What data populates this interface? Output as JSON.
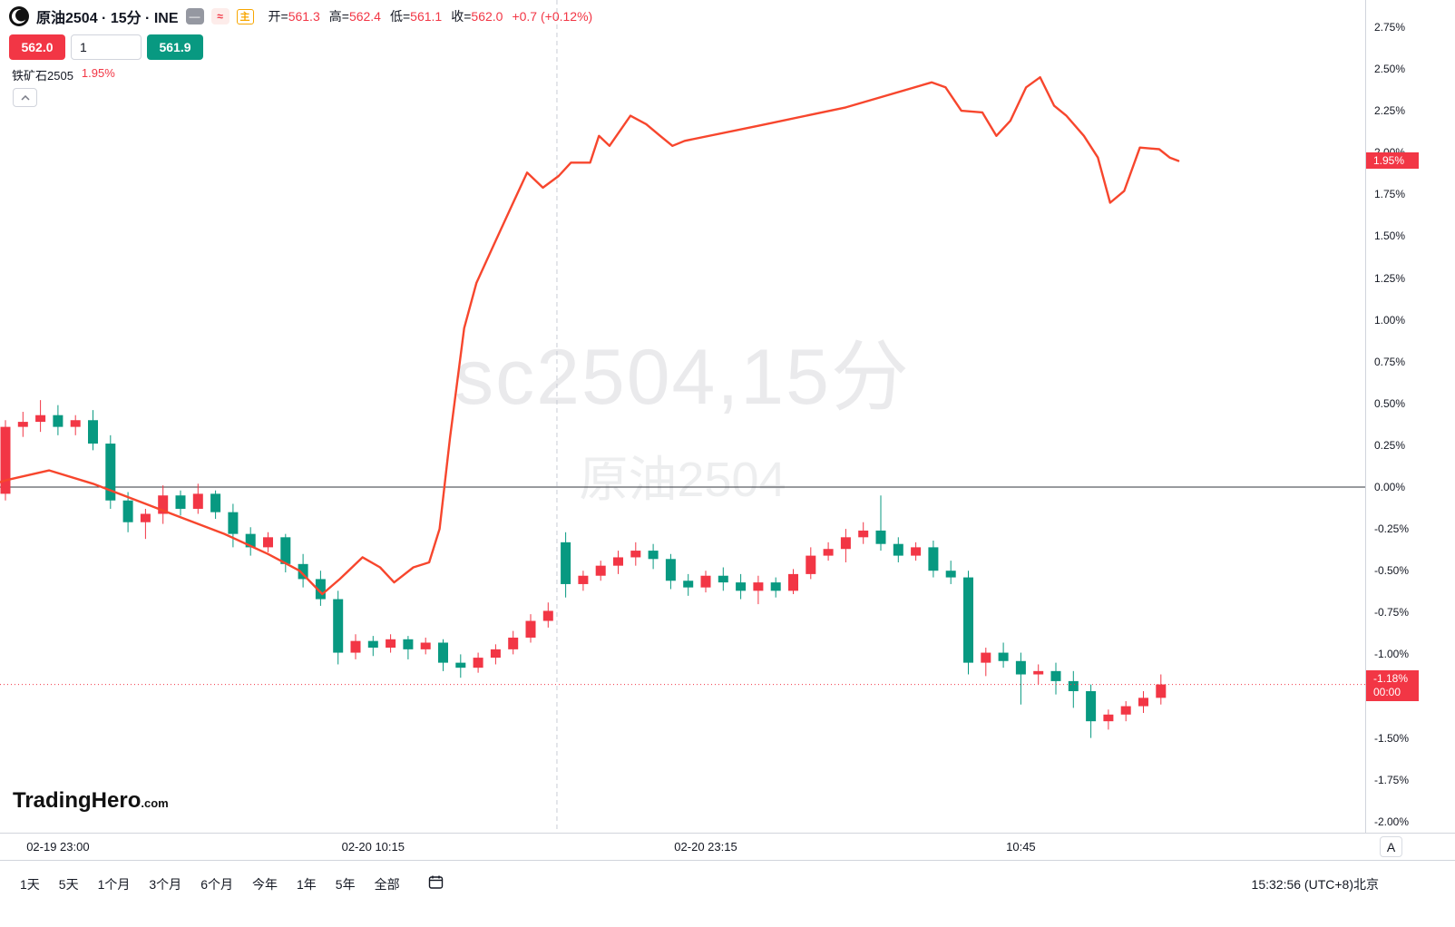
{
  "header": {
    "title": "原油2504 · 15分 · INE",
    "icons": {
      "dash": "—",
      "wave": "≈",
      "main": "主"
    },
    "ohlc": {
      "separator": "=",
      "items": [
        {
          "label": "开",
          "value": "561.3"
        },
        {
          "label": "高",
          "value": "562.4"
        },
        {
          "label": "低",
          "value": "561.1"
        },
        {
          "label": "收",
          "value": "562.0"
        }
      ],
      "change": "+0.7 (+0.12%)"
    }
  },
  "order_panel": {
    "sell": "562.0",
    "quantity": "1",
    "buy": "561.9"
  },
  "brand": {
    "name": "TradingHero",
    "suffix": ".com"
  },
  "price_axis": {
    "badges": {
      "compare": {
        "text": "1.95%",
        "value": 1.95
      },
      "last": {
        "line1": "-1.18%",
        "line2": "00:00",
        "value": -1.18
      }
    },
    "auto_label": "A"
  },
  "toolbar": {
    "ranges": [
      "1天",
      "5天",
      "1个月",
      "3个月",
      "6个月",
      "今年",
      "1年",
      "5年",
      "全部"
    ],
    "clock": "15:32:56 (UTC+8)北京"
  },
  "colors": {
    "up": "#f23645",
    "down": "#089981",
    "compare_line": "#f7462d",
    "last_price_line": "#f23645",
    "zero_line": "#32363e",
    "session_line": "#c9cdd4",
    "axis_border": "#d1d4dc"
  },
  "chart_data": {
    "type": "candlestick",
    "title_watermark": "sc2504,15分",
    "subtitle_watermark": "原油2504",
    "series_unit": "percent_change",
    "y_axis": {
      "min": -2.0,
      "max": 2.75,
      "tick_step": 0.25,
      "tick_values": [
        2.75,
        2.5,
        2.25,
        2.0,
        1.75,
        1.5,
        1.25,
        1.0,
        0.75,
        0.5,
        0.25,
        0.0,
        -0.25,
        -0.5,
        -0.75,
        -1.0,
        -1.25,
        -1.5,
        -1.75,
        -2.0
      ]
    },
    "zero_line": 0.0,
    "last_price": -1.18,
    "session_break_index": 32,
    "x_axis": {
      "ticks": [
        {
          "label": "02-19 23:00",
          "bar": 3
        },
        {
          "label": "02-20 10:15",
          "bar": 21
        },
        {
          "label": "02-20 23:15",
          "bar": 40
        },
        {
          "label": "10:45",
          "bar": 58
        }
      ]
    },
    "candles": [
      [
        -0.04,
        0.4,
        -0.08,
        0.36
      ],
      [
        0.36,
        0.45,
        0.3,
        0.39
      ],
      [
        0.39,
        0.52,
        0.33,
        0.43
      ],
      [
        0.43,
        0.49,
        0.31,
        0.36
      ],
      [
        0.36,
        0.43,
        0.31,
        0.4
      ],
      [
        0.4,
        0.46,
        0.22,
        0.26
      ],
      [
        0.26,
        0.31,
        -0.13,
        -0.08
      ],
      [
        -0.08,
        -0.03,
        -0.27,
        -0.21
      ],
      [
        -0.21,
        -0.13,
        -0.31,
        -0.16
      ],
      [
        -0.16,
        0.01,
        -0.22,
        -0.05
      ],
      [
        -0.05,
        -0.02,
        -0.17,
        -0.13
      ],
      [
        -0.13,
        0.02,
        -0.16,
        -0.04
      ],
      [
        -0.04,
        -0.02,
        -0.19,
        -0.15
      ],
      [
        -0.15,
        -0.1,
        -0.36,
        -0.28
      ],
      [
        -0.28,
        -0.24,
        -0.41,
        -0.36
      ],
      [
        -0.36,
        -0.27,
        -0.39,
        -0.3
      ],
      [
        -0.3,
        -0.28,
        -0.51,
        -0.46
      ],
      [
        -0.46,
        -0.4,
        -0.6,
        -0.55
      ],
      [
        -0.55,
        -0.5,
        -0.71,
        -0.67
      ],
      [
        -0.67,
        -0.62,
        -1.06,
        -0.99
      ],
      [
        -0.99,
        -0.88,
        -1.03,
        -0.92
      ],
      [
        -0.92,
        -0.89,
        -1.01,
        -0.96
      ],
      [
        -0.96,
        -0.88,
        -0.99,
        -0.91
      ],
      [
        -0.91,
        -0.89,
        -1.03,
        -0.97
      ],
      [
        -0.97,
        -0.9,
        -1.0,
        -0.93
      ],
      [
        -0.93,
        -0.91,
        -1.1,
        -1.05
      ],
      [
        -1.05,
        -1.0,
        -1.14,
        -1.08
      ],
      [
        -1.08,
        -0.99,
        -1.11,
        -1.02
      ],
      [
        -1.02,
        -0.94,
        -1.06,
        -0.97
      ],
      [
        -0.97,
        -0.86,
        -1.0,
        -0.9
      ],
      [
        -0.9,
        -0.76,
        -0.93,
        -0.8
      ],
      [
        -0.8,
        -0.69,
        -0.84,
        -0.74
      ],
      [
        -0.33,
        -0.27,
        -0.66,
        -0.58
      ],
      [
        -0.58,
        -0.5,
        -0.62,
        -0.53
      ],
      [
        -0.53,
        -0.44,
        -0.56,
        -0.47
      ],
      [
        -0.47,
        -0.38,
        -0.52,
        -0.42
      ],
      [
        -0.42,
        -0.33,
        -0.47,
        -0.38
      ],
      [
        -0.38,
        -0.34,
        -0.49,
        -0.43
      ],
      [
        -0.43,
        -0.4,
        -0.61,
        -0.56
      ],
      [
        -0.56,
        -0.52,
        -0.65,
        -0.6
      ],
      [
        -0.6,
        -0.5,
        -0.63,
        -0.53
      ],
      [
        -0.53,
        -0.48,
        -0.62,
        -0.57
      ],
      [
        -0.57,
        -0.52,
        -0.67,
        -0.62
      ],
      [
        -0.62,
        -0.53,
        -0.7,
        -0.57
      ],
      [
        -0.57,
        -0.54,
        -0.66,
        -0.62
      ],
      [
        -0.62,
        -0.49,
        -0.64,
        -0.52
      ],
      [
        -0.52,
        -0.36,
        -0.55,
        -0.41
      ],
      [
        -0.41,
        -0.33,
        -0.44,
        -0.37
      ],
      [
        -0.37,
        -0.25,
        -0.45,
        -0.3
      ],
      [
        -0.3,
        -0.21,
        -0.34,
        -0.26
      ],
      [
        -0.26,
        -0.05,
        -0.38,
        -0.34
      ],
      [
        -0.34,
        -0.3,
        -0.45,
        -0.41
      ],
      [
        -0.41,
        -0.33,
        -0.44,
        -0.36
      ],
      [
        -0.36,
        -0.32,
        -0.54,
        -0.5
      ],
      [
        -0.5,
        -0.44,
        -0.58,
        -0.54
      ],
      [
        -0.54,
        -0.5,
        -1.12,
        -1.05
      ],
      [
        -1.05,
        -0.96,
        -1.13,
        -0.99
      ],
      [
        -0.99,
        -0.93,
        -1.08,
        -1.04
      ],
      [
        -1.04,
        -0.99,
        -1.3,
        -1.12
      ],
      [
        -1.12,
        -1.06,
        -1.18,
        -1.1
      ],
      [
        -1.1,
        -1.05,
        -1.24,
        -1.16
      ],
      [
        -1.16,
        -1.1,
        -1.32,
        -1.22
      ],
      [
        -1.22,
        -1.18,
        -1.5,
        -1.4
      ],
      [
        -1.4,
        -1.33,
        -1.45,
        -1.36
      ],
      [
        -1.36,
        -1.28,
        -1.4,
        -1.31
      ],
      [
        -1.31,
        -1.22,
        -1.35,
        -1.26
      ],
      [
        -1.26,
        -1.12,
        -1.3,
        -1.18
      ]
    ],
    "compare_series": {
      "name": "铁矿石2505",
      "change": "1.95%",
      "points": [
        [
          -0.3,
          0.03
        ],
        [
          0,
          0.04
        ],
        [
          2.5,
          0.1
        ],
        [
          5,
          0.02
        ],
        [
          7.5,
          -0.08
        ],
        [
          10,
          -0.18
        ],
        [
          12.5,
          -0.28
        ],
        [
          15,
          -0.4
        ],
        [
          16.8,
          -0.5
        ],
        [
          18.1,
          -0.64
        ],
        [
          19.1,
          -0.55
        ],
        [
          20.4,
          -0.42
        ],
        [
          21.4,
          -0.48
        ],
        [
          22.2,
          -0.57
        ],
        [
          23.3,
          -0.48
        ],
        [
          24.2,
          -0.45
        ],
        [
          24.8,
          -0.25
        ],
        [
          25.4,
          0.3
        ],
        [
          26.2,
          0.95
        ],
        [
          26.9,
          1.22
        ],
        [
          27.9,
          1.45
        ],
        [
          29.0,
          1.7
        ],
        [
          29.8,
          1.88
        ],
        [
          30.7,
          1.79
        ],
        [
          31.6,
          1.86
        ],
        [
          32.3,
          1.94
        ],
        [
          33.4,
          1.94
        ],
        [
          33.9,
          2.1
        ],
        [
          34.5,
          2.04
        ],
        [
          35.7,
          2.22
        ],
        [
          36.6,
          2.17
        ],
        [
          37.4,
          2.1
        ],
        [
          38.1,
          2.04
        ],
        [
          38.8,
          2.07
        ],
        [
          43.0,
          2.16
        ],
        [
          48.0,
          2.27
        ],
        [
          52.9,
          2.42
        ],
        [
          53.7,
          2.39
        ],
        [
          54.6,
          2.25
        ],
        [
          55.8,
          2.24
        ],
        [
          56.6,
          2.1
        ],
        [
          57.4,
          2.19
        ],
        [
          58.3,
          2.39
        ],
        [
          59.1,
          2.45
        ],
        [
          59.9,
          2.28
        ],
        [
          60.6,
          2.22
        ],
        [
          61.6,
          2.1
        ],
        [
          62.4,
          1.97
        ],
        [
          63.1,
          1.7
        ],
        [
          63.9,
          1.77
        ],
        [
          64.8,
          2.03
        ],
        [
          65.9,
          2.02
        ],
        [
          66.5,
          1.97
        ],
        [
          67.0,
          1.95
        ]
      ]
    }
  }
}
